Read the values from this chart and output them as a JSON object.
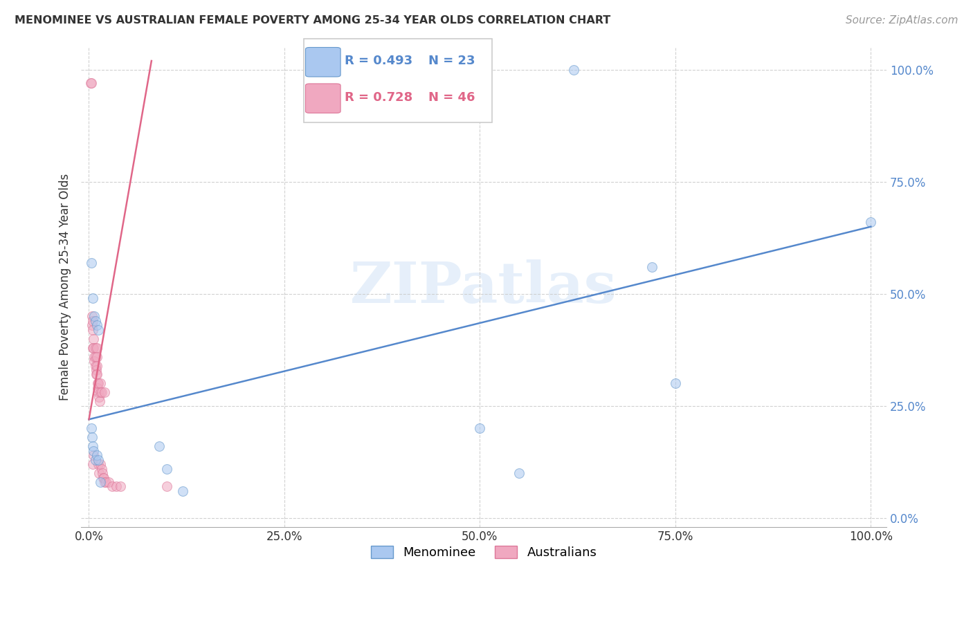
{
  "title": "MENOMINEE VS AUSTRALIAN FEMALE POVERTY AMONG 25-34 YEAR OLDS CORRELATION CHART",
  "source": "Source: ZipAtlas.com",
  "ylabel": "Female Poverty Among 25-34 Year Olds",
  "xlim": [
    -0.01,
    1.02
  ],
  "ylim": [
    -0.02,
    1.05
  ],
  "xticks": [
    0.0,
    0.25,
    0.5,
    0.75,
    1.0
  ],
  "xticklabels": [
    "0.0%",
    "25.0%",
    "50.0%",
    "75.0%",
    "100.0%"
  ],
  "yticks": [
    0.0,
    0.25,
    0.5,
    0.75,
    1.0
  ],
  "yticklabels": [
    "0.0%",
    "25.0%",
    "50.0%",
    "75.0%",
    "100.0%"
  ],
  "menominee_color": "#aac8f0",
  "menominee_edge": "#6699cc",
  "australians_color": "#f0a8c0",
  "australians_edge": "#dd7799",
  "trendline_blue": "#5588cc",
  "trendline_pink": "#e06688",
  "legend_blue_R": "R = 0.493",
  "legend_blue_N": "N = 23",
  "legend_pink_R": "R = 0.728",
  "legend_pink_N": "N = 46",
  "watermark_text": "ZIPatlas",
  "menominee_x": [
    0.003,
    0.005,
    0.007,
    0.008,
    0.01,
    0.012,
    0.003,
    0.004,
    0.005,
    0.006,
    0.008,
    0.01,
    0.012,
    0.015,
    0.09,
    0.1,
    0.12,
    0.5,
    0.55,
    0.62,
    0.72,
    0.75,
    1.0
  ],
  "menominee_y": [
    0.57,
    0.49,
    0.45,
    0.44,
    0.43,
    0.42,
    0.2,
    0.18,
    0.16,
    0.15,
    0.13,
    0.14,
    0.13,
    0.08,
    0.16,
    0.11,
    0.06,
    0.2,
    0.1,
    1.0,
    0.56,
    0.3,
    0.66
  ],
  "australians_x": [
    0.002,
    0.003,
    0.004,
    0.004,
    0.005,
    0.005,
    0.005,
    0.005,
    0.006,
    0.006,
    0.006,
    0.007,
    0.007,
    0.008,
    0.008,
    0.008,
    0.009,
    0.009,
    0.01,
    0.01,
    0.01,
    0.01,
    0.011,
    0.011,
    0.012,
    0.012,
    0.012,
    0.013,
    0.013,
    0.014,
    0.015,
    0.015,
    0.015,
    0.016,
    0.016,
    0.017,
    0.018,
    0.019,
    0.02,
    0.02,
    0.022,
    0.025,
    0.03,
    0.035,
    0.04,
    0.1
  ],
  "australians_y": [
    0.97,
    0.97,
    0.45,
    0.43,
    0.44,
    0.42,
    0.38,
    0.12,
    0.4,
    0.38,
    0.14,
    0.36,
    0.35,
    0.38,
    0.36,
    0.34,
    0.33,
    0.32,
    0.38,
    0.36,
    0.34,
    0.32,
    0.3,
    0.29,
    0.3,
    0.28,
    0.12,
    0.27,
    0.1,
    0.26,
    0.3,
    0.28,
    0.12,
    0.28,
    0.11,
    0.1,
    0.09,
    0.09,
    0.28,
    0.08,
    0.08,
    0.08,
    0.07,
    0.07,
    0.07,
    0.07
  ],
  "grid_color": "#cccccc",
  "background_color": "#ffffff",
  "marker_size": 100,
  "marker_alpha": 0.55,
  "trendline_lw": 1.8,
  "blue_trend_x0": 0.0,
  "blue_trend_y0": 0.22,
  "blue_trend_x1": 1.0,
  "blue_trend_y1": 0.65,
  "pink_trend_x0": 0.0,
  "pink_trend_y0": 0.22,
  "pink_trend_x1": 0.08,
  "pink_trend_y1": 1.02
}
